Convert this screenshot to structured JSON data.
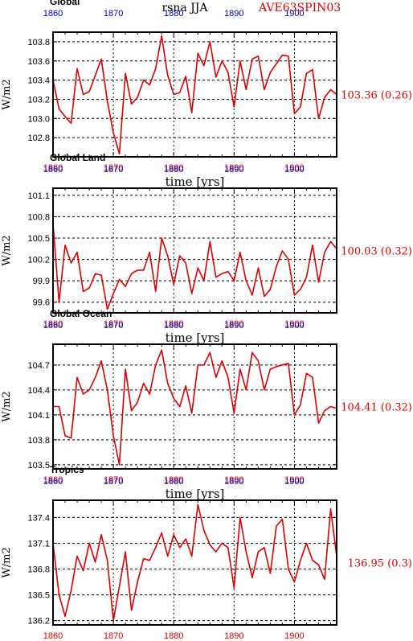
{
  "header": {
    "title": "rsna JJA",
    "run": "AVE63SPIN03"
  },
  "colors": {
    "line": "#dd0000",
    "bottom_ticks": "#dd0000",
    "top_ticks": "#0000c0",
    "grid": "#000000",
    "text": "#000000"
  },
  "chart_data": [
    {
      "type": "line",
      "title": "Global",
      "xlabel": "time [yrs]",
      "ylabel": "W/m2",
      "xlim": [
        1860,
        1907
      ],
      "ylim": [
        102.6,
        103.9
      ],
      "yticks": [
        "103.8",
        "103.6",
        "103.4",
        "103.2",
        "103.0",
        "102.8"
      ],
      "ytick_values": [
        103.8,
        103.6,
        103.4,
        103.2,
        103.0,
        102.8
      ],
      "xticks_bottom": [
        "1860",
        "1870",
        "1880",
        "1890",
        "1900"
      ],
      "xticks_top": [
        "1860",
        "1870",
        "1880",
        "1890",
        "1900"
      ],
      "grid": true,
      "annotation": "103.36 (0.26)",
      "x": [
        1860,
        1861,
        1862,
        1863,
        1864,
        1865,
        1866,
        1867,
        1868,
        1869,
        1870,
        1871,
        1872,
        1873,
        1874,
        1875,
        1876,
        1877,
        1878,
        1879,
        1880,
        1881,
        1882,
        1883,
        1884,
        1885,
        1886,
        1887,
        1888,
        1889,
        1890,
        1891,
        1892,
        1893,
        1894,
        1895,
        1896,
        1897,
        1898,
        1899,
        1900,
        1901,
        1902,
        1903,
        1904,
        1905,
        1906,
        1907
      ],
      "series": [
        {
          "values": [
            103.4,
            103.1,
            103.02,
            102.95,
            103.52,
            103.25,
            103.28,
            103.45,
            103.62,
            103.18,
            102.85,
            102.63,
            103.47,
            103.15,
            103.22,
            103.4,
            103.35,
            103.52,
            103.86,
            103.45,
            103.25,
            103.27,
            103.44,
            103.06,
            103.68,
            103.55,
            103.8,
            103.43,
            103.6,
            103.48,
            103.12,
            103.6,
            103.3,
            103.62,
            103.65,
            103.3,
            103.48,
            103.57,
            103.66,
            103.65,
            103.05,
            103.12,
            103.47,
            103.51,
            103.0,
            103.22,
            103.3,
            103.25
          ]
        }
      ]
    },
    {
      "type": "line",
      "title": "Global Land",
      "xlabel": "time [yrs]",
      "ylabel": "W/m2",
      "xlim": [
        1860,
        1907
      ],
      "ylim": [
        99.45,
        101.2
      ],
      "yticks": [
        "101.1",
        "100.8",
        "100.5",
        "100.2",
        "99.9",
        "99.6"
      ],
      "ytick_values": [
        101.1,
        100.8,
        100.5,
        100.2,
        99.9,
        99.6
      ],
      "xticks_bottom": [
        "1860",
        "1870",
        "1880",
        "1890",
        "1900"
      ],
      "xticks_top": [
        "1860",
        "1870",
        "1880",
        "1890",
        "1900"
      ],
      "grid": true,
      "annotation": "100.03 (0.32)",
      "x": [
        1860,
        1861,
        1862,
        1863,
        1864,
        1865,
        1866,
        1867,
        1868,
        1869,
        1870,
        1871,
        1872,
        1873,
        1874,
        1875,
        1876,
        1877,
        1878,
        1879,
        1880,
        1881,
        1882,
        1883,
        1884,
        1885,
        1886,
        1887,
        1888,
        1889,
        1890,
        1891,
        1892,
        1893,
        1894,
        1895,
        1896,
        1897,
        1898,
        1899,
        1900,
        1901,
        1902,
        1903,
        1904,
        1905,
        1906,
        1907
      ],
      "series": [
        {
          "values": [
            100.7,
            99.6,
            100.4,
            100.15,
            100.3,
            99.75,
            99.8,
            100.0,
            99.98,
            99.5,
            99.72,
            99.92,
            99.82,
            100.0,
            100.05,
            100.05,
            100.3,
            99.75,
            100.5,
            100.25,
            99.85,
            100.25,
            100.15,
            99.72,
            100.08,
            99.9,
            100.45,
            99.95,
            100.0,
            100.03,
            99.9,
            100.3,
            99.9,
            99.7,
            100.08,
            99.68,
            99.78,
            100.1,
            100.32,
            100.2,
            99.7,
            99.78,
            99.95,
            100.4,
            99.88,
            100.3,
            100.45,
            100.35
          ]
        }
      ]
    },
    {
      "type": "line",
      "title": "Global Ocean",
      "xlabel": "time [yrs]",
      "ylabel": "W/m2",
      "xlim": [
        1860,
        1907
      ],
      "ylim": [
        103.45,
        104.95
      ],
      "yticks": [
        "104.7",
        "104.4",
        "104.1",
        "103.8",
        "103.5"
      ],
      "ytick_values": [
        104.7,
        104.4,
        104.1,
        103.8,
        103.5
      ],
      "xticks_bottom": [
        "1860",
        "1870",
        "1880",
        "1890",
        "1900"
      ],
      "xticks_top": [
        "1860",
        "1870",
        "1880",
        "1890",
        "1900"
      ],
      "grid": true,
      "annotation": "104.41 (0.32)",
      "x": [
        1860,
        1861,
        1862,
        1863,
        1864,
        1865,
        1866,
        1867,
        1868,
        1869,
        1870,
        1871,
        1872,
        1873,
        1874,
        1875,
        1876,
        1877,
        1878,
        1879,
        1880,
        1881,
        1882,
        1883,
        1884,
        1885,
        1886,
        1887,
        1888,
        1889,
        1890,
        1891,
        1892,
        1893,
        1894,
        1895,
        1896,
        1897,
        1898,
        1899,
        1900,
        1901,
        1902,
        1903,
        1904,
        1905,
        1906,
        1907
      ],
      "series": [
        {
          "values": [
            104.2,
            104.2,
            103.85,
            103.82,
            104.55,
            104.35,
            104.4,
            104.55,
            104.75,
            104.4,
            103.85,
            103.5,
            104.65,
            104.15,
            104.25,
            104.48,
            104.35,
            104.7,
            104.88,
            104.48,
            104.3,
            104.2,
            104.45,
            104.12,
            104.7,
            104.7,
            104.85,
            104.55,
            104.75,
            104.55,
            104.12,
            104.65,
            104.4,
            104.85,
            104.75,
            104.4,
            104.65,
            104.68,
            104.7,
            104.72,
            104.1,
            104.22,
            104.6,
            104.55,
            104.0,
            104.15,
            104.2,
            104.18
          ]
        }
      ]
    },
    {
      "type": "line",
      "title": "Tropics",
      "xlabel": "time [yrs]",
      "ylabel": "W/m2",
      "xlim": [
        1860,
        1907
      ],
      "ylim": [
        136.15,
        137.6
      ],
      "yticks": [
        "137.4",
        "137.1",
        "136.8",
        "136.5",
        "136.2"
      ],
      "ytick_values": [
        137.4,
        137.1,
        136.8,
        136.5,
        136.2
      ],
      "xticks_bottom": [
        "1860",
        "1870",
        "1880",
        "1890",
        "1900"
      ],
      "xticks_top": [
        "1860",
        "1870",
        "1880",
        "1890",
        "1900"
      ],
      "grid": true,
      "annotation": "136.95 (0.3)",
      "x": [
        1860,
        1861,
        1862,
        1863,
        1864,
        1865,
        1866,
        1867,
        1868,
        1869,
        1870,
        1871,
        1872,
        1873,
        1874,
        1875,
        1876,
        1877,
        1878,
        1879,
        1880,
        1881,
        1882,
        1883,
        1884,
        1885,
        1886,
        1887,
        1888,
        1889,
        1890,
        1891,
        1892,
        1893,
        1894,
        1895,
        1896,
        1897,
        1898,
        1899,
        1900,
        1901,
        1902,
        1903,
        1904,
        1905,
        1906,
        1907
      ],
      "series": [
        {
          "values": [
            137.1,
            136.5,
            136.25,
            136.55,
            136.95,
            136.78,
            137.1,
            136.88,
            137.2,
            136.9,
            136.2,
            136.6,
            137.0,
            136.32,
            136.65,
            136.92,
            136.9,
            137.05,
            137.22,
            136.95,
            137.2,
            137.05,
            137.15,
            136.95,
            137.55,
            137.25,
            137.08,
            137.0,
            137.1,
            137.05,
            136.58,
            137.4,
            137.0,
            136.7,
            137.0,
            137.05,
            136.75,
            137.3,
            137.38,
            136.8,
            136.65,
            136.9,
            137.1,
            136.9,
            136.85,
            136.68,
            137.5,
            136.95
          ]
        }
      ]
    }
  ]
}
